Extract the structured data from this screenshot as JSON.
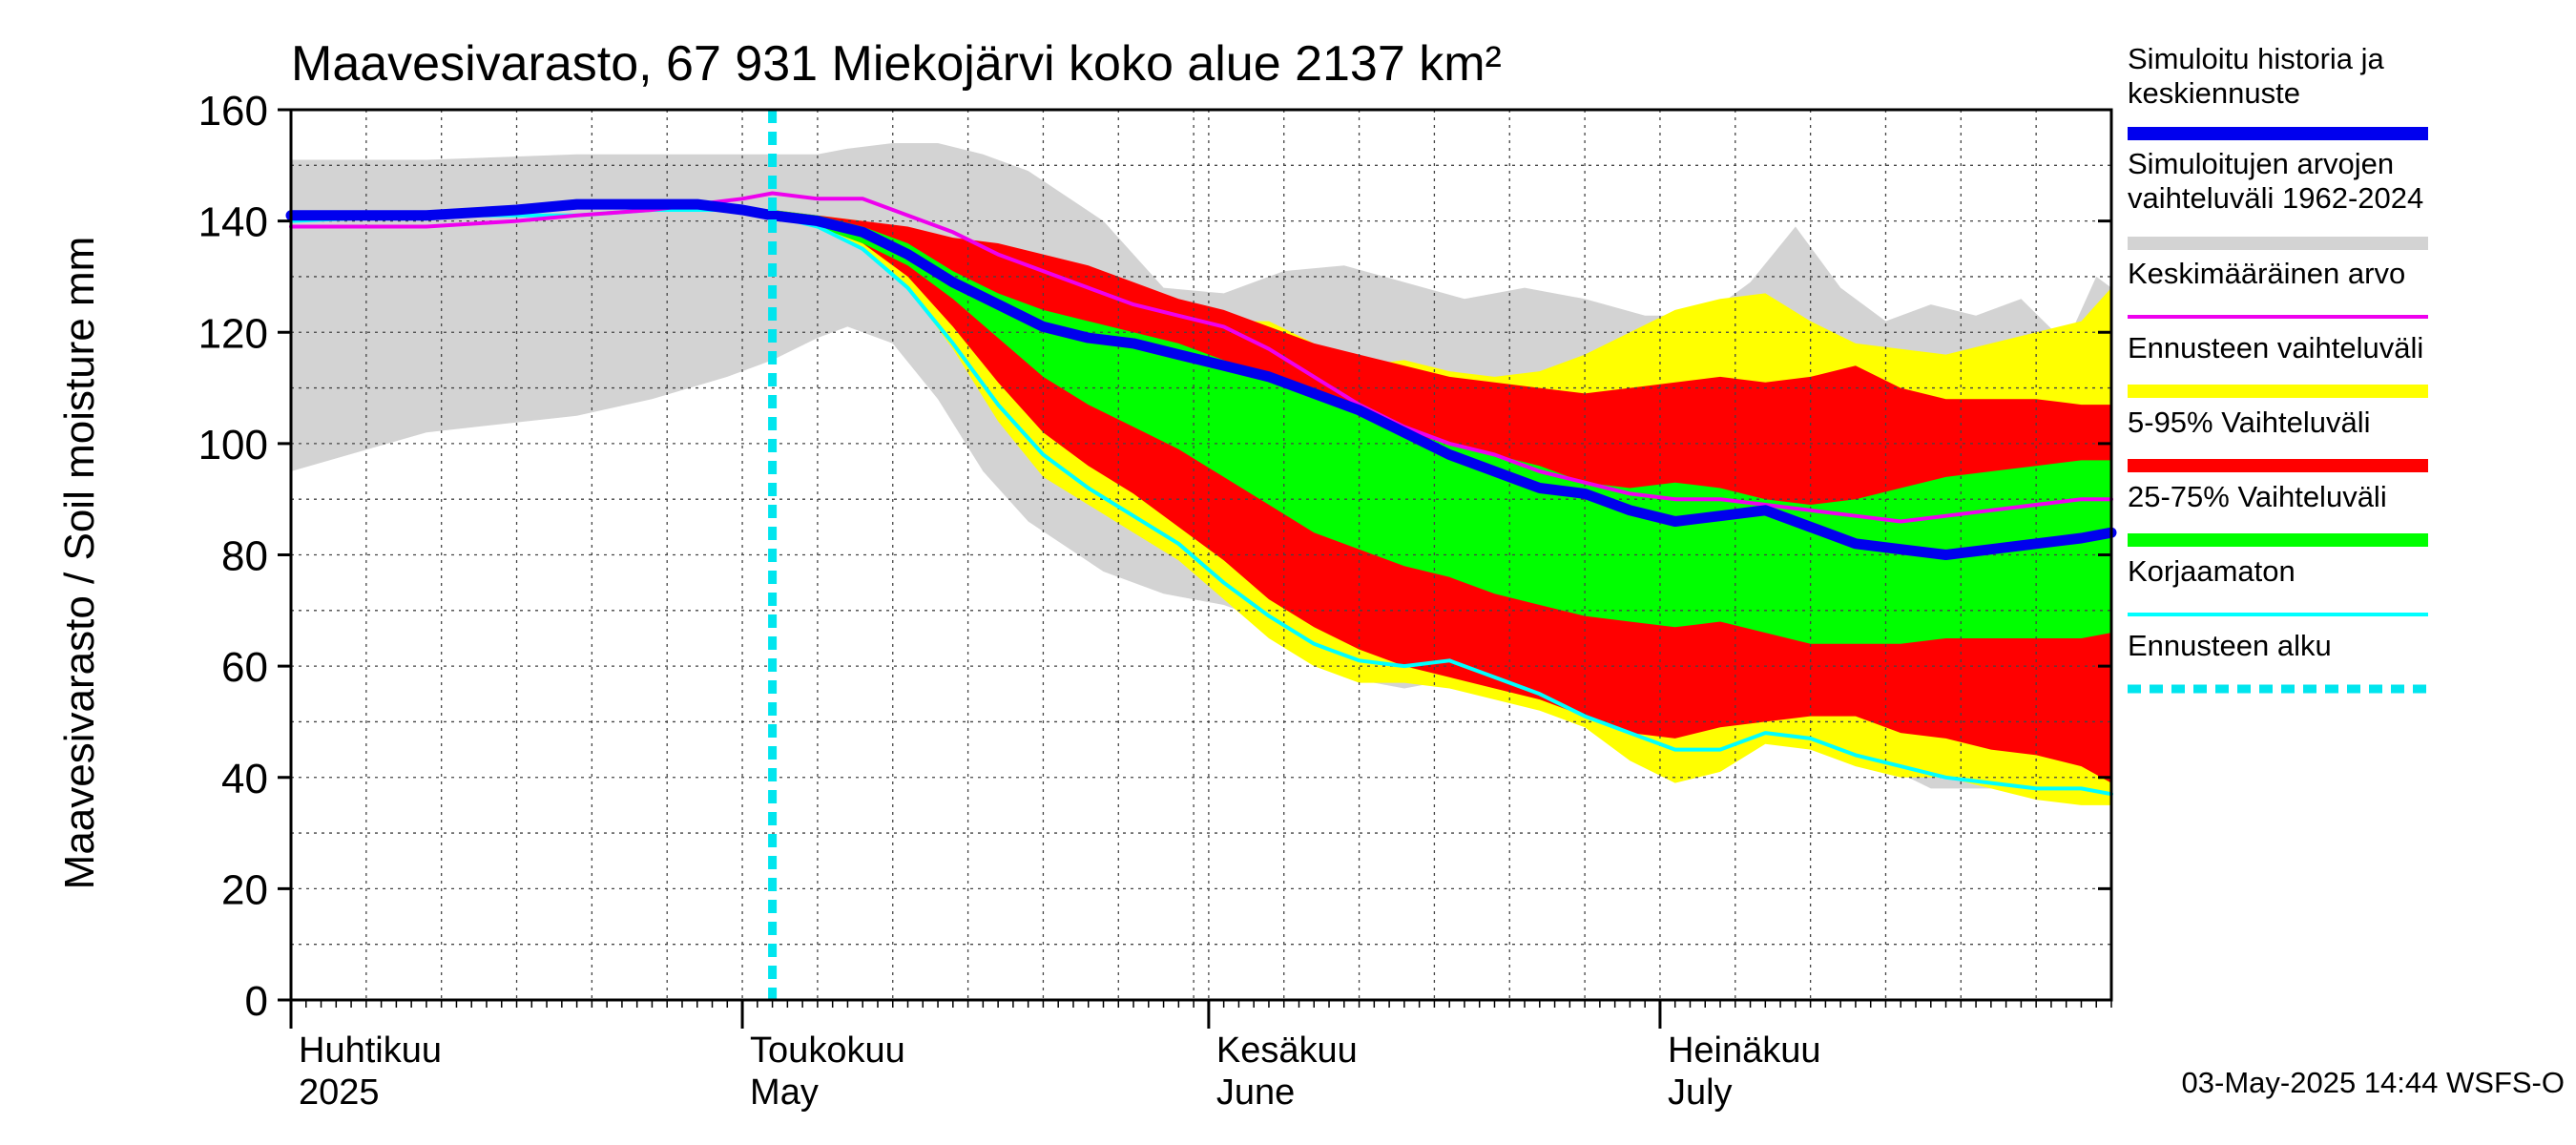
{
  "chart_data": {
    "type": "area",
    "title": "Maavesivarasto, 67 931 Miekojärvi koko alue 2137 km²",
    "ylabel": "Maavesivarasto / Soil moisture   mm",
    "ylim": [
      0,
      160
    ],
    "yticks": [
      "0",
      "20",
      "40",
      "60",
      "80",
      "100",
      "120",
      "140",
      "160"
    ],
    "grid": true,
    "x_range": [
      "2025-04-01",
      "2025-07-31"
    ],
    "months": [
      {
        "date": "2025-04-01",
        "line1": "Huhtikuu",
        "line2": "2025"
      },
      {
        "date": "2025-05-01",
        "line1": "Toukokuu",
        "line2": "May"
      },
      {
        "date": "2025-06-01",
        "line1": "Kesäkuu",
        "line2": "June"
      },
      {
        "date": "2025-07-01",
        "line1": "Heinäkuu",
        "line2": "July"
      }
    ],
    "forecast_start": "2025-05-03",
    "colors": {
      "history_range": "#d3d3d3",
      "forecast_range": "#ffff00",
      "p5_95": "#ff0000",
      "p25_75": "#00ff00",
      "median": "#0000ee",
      "mean": "#ee00ee",
      "uncorrected": "#00ffff",
      "forecast_start": "#00e5ee"
    },
    "series": {
      "history_range": {
        "x": [
          "2025-04-01",
          "2025-04-10",
          "2025-04-20",
          "2025-04-25",
          "2025-04-30",
          "2025-05-03",
          "2025-05-06",
          "2025-05-08",
          "2025-05-11",
          "2025-05-14",
          "2025-05-17",
          "2025-05-20",
          "2025-05-25",
          "2025-05-29",
          "2025-06-02",
          "2025-06-06",
          "2025-06-10",
          "2025-06-14",
          "2025-06-18",
          "2025-06-22",
          "2025-06-26",
          "2025-06-30",
          "2025-07-04",
          "2025-07-07",
          "2025-07-10",
          "2025-07-13",
          "2025-07-16",
          "2025-07-19",
          "2025-07-22",
          "2025-07-25",
          "2025-07-28",
          "2025-07-30",
          "2025-07-31"
        ],
        "upper": [
          151,
          151,
          152,
          152,
          152,
          152,
          152,
          153,
          154,
          154,
          152,
          149,
          140,
          128,
          127,
          131,
          132,
          129,
          126,
          128,
          126,
          123,
          123,
          129,
          139,
          128,
          122,
          125,
          123,
          126,
          118,
          130,
          128
        ],
        "lower": [
          95,
          102,
          105,
          108,
          112,
          115,
          119,
          121,
          118,
          108,
          95,
          86,
          77,
          73,
          71,
          67,
          58,
          56,
          58,
          56,
          51,
          44,
          44,
          50,
          46,
          46,
          42,
          38,
          38,
          38,
          36,
          36,
          37
        ]
      },
      "forecast_range": {
        "x": [
          "2025-05-03",
          "2025-05-06",
          "2025-05-09",
          "2025-05-12",
          "2025-05-15",
          "2025-05-18",
          "2025-05-21",
          "2025-05-24",
          "2025-05-27",
          "2025-05-30",
          "2025-06-02",
          "2025-06-05",
          "2025-06-08",
          "2025-06-11",
          "2025-06-14",
          "2025-06-17",
          "2025-06-20",
          "2025-06-23",
          "2025-06-26",
          "2025-06-29",
          "2025-07-02",
          "2025-07-05",
          "2025-07-08",
          "2025-07-11",
          "2025-07-14",
          "2025-07-17",
          "2025-07-20",
          "2025-07-23",
          "2025-07-26",
          "2025-07-29",
          "2025-07-31"
        ],
        "upper": [
          142,
          141,
          140,
          138,
          135,
          133,
          130,
          128,
          125,
          123,
          122,
          122,
          118,
          114,
          115,
          113,
          112,
          113,
          116,
          120,
          124,
          126,
          127,
          122,
          118,
          117,
          116,
          118,
          120,
          122,
          128
        ],
        "lower": [
          141,
          139,
          135,
          128,
          117,
          104,
          94,
          89,
          84,
          79,
          72,
          65,
          60,
          57,
          57,
          56,
          54,
          52,
          49,
          43,
          39,
          41,
          46,
          45,
          42,
          40,
          40,
          38,
          36,
          35,
          35
        ]
      },
      "p5_95": {
        "x": [
          "2025-05-03",
          "2025-05-06",
          "2025-05-09",
          "2025-05-12",
          "2025-05-15",
          "2025-05-18",
          "2025-05-21",
          "2025-05-24",
          "2025-05-27",
          "2025-05-30",
          "2025-06-02",
          "2025-06-05",
          "2025-06-08",
          "2025-06-11",
          "2025-06-14",
          "2025-06-17",
          "2025-06-20",
          "2025-06-23",
          "2025-06-26",
          "2025-06-29",
          "2025-07-02",
          "2025-07-05",
          "2025-07-08",
          "2025-07-11",
          "2025-07-14",
          "2025-07-17",
          "2025-07-20",
          "2025-07-23",
          "2025-07-26",
          "2025-07-29",
          "2025-07-31"
        ],
        "upper": [
          142,
          141,
          140,
          139,
          137,
          136,
          134,
          132,
          129,
          126,
          124,
          121,
          118,
          116,
          114,
          112,
          111,
          110,
          109,
          110,
          111,
          112,
          111,
          112,
          114,
          110,
          108,
          108,
          108,
          107,
          107
        ],
        "lower": [
          141,
          139,
          136,
          130,
          121,
          111,
          102,
          96,
          91,
          85,
          79,
          72,
          67,
          63,
          60,
          58,
          56,
          54,
          51,
          48,
          47,
          49,
          50,
          51,
          51,
          48,
          47,
          45,
          44,
          42,
          39
        ]
      },
      "p25_75": {
        "x": [
          "2025-05-03",
          "2025-05-06",
          "2025-05-09",
          "2025-05-12",
          "2025-05-15",
          "2025-05-18",
          "2025-05-21",
          "2025-05-24",
          "2025-05-27",
          "2025-05-30",
          "2025-06-02",
          "2025-06-05",
          "2025-06-08",
          "2025-06-11",
          "2025-06-14",
          "2025-06-17",
          "2025-06-20",
          "2025-06-23",
          "2025-06-26",
          "2025-06-29",
          "2025-07-02",
          "2025-07-05",
          "2025-07-08",
          "2025-07-11",
          "2025-07-14",
          "2025-07-17",
          "2025-07-20",
          "2025-07-23",
          "2025-07-26",
          "2025-07-29",
          "2025-07-31"
        ],
        "upper": [
          142,
          141,
          139,
          136,
          131,
          127,
          124,
          122,
          120,
          118,
          115,
          112,
          109,
          105,
          102,
          100,
          98,
          96,
          93,
          92,
          93,
          92,
          90,
          89,
          90,
          92,
          94,
          95,
          96,
          97,
          97
        ],
        "lower": [
          141,
          139,
          136,
          132,
          126,
          119,
          112,
          107,
          103,
          99,
          94,
          89,
          84,
          81,
          78,
          76,
          73,
          71,
          69,
          68,
          67,
          68,
          66,
          64,
          64,
          64,
          65,
          65,
          65,
          65,
          66
        ]
      },
      "median": {
        "x": [
          "2025-04-01",
          "2025-04-10",
          "2025-04-16",
          "2025-04-20",
          "2025-04-25",
          "2025-04-28",
          "2025-05-01",
          "2025-05-03",
          "2025-05-06",
          "2025-05-09",
          "2025-05-12",
          "2025-05-15",
          "2025-05-18",
          "2025-05-21",
          "2025-05-24",
          "2025-05-27",
          "2025-05-30",
          "2025-06-02",
          "2025-06-05",
          "2025-06-08",
          "2025-06-11",
          "2025-06-14",
          "2025-06-17",
          "2025-06-20",
          "2025-06-23",
          "2025-06-26",
          "2025-06-29",
          "2025-07-02",
          "2025-07-05",
          "2025-07-08",
          "2025-07-11",
          "2025-07-14",
          "2025-07-17",
          "2025-07-20",
          "2025-07-23",
          "2025-07-26",
          "2025-07-29",
          "2025-07-31"
        ],
        "y": [
          141,
          141,
          142,
          143,
          143,
          143,
          142,
          141,
          140,
          138,
          134,
          129,
          125,
          121,
          119,
          118,
          116,
          114,
          112,
          109,
          106,
          102,
          98,
          95,
          92,
          91,
          88,
          86,
          87,
          88,
          85,
          82,
          81,
          80,
          81,
          82,
          83,
          84
        ]
      },
      "mean": {
        "x": [
          "2025-04-01",
          "2025-04-10",
          "2025-04-16",
          "2025-04-20",
          "2025-04-25",
          "2025-04-28",
          "2025-05-01",
          "2025-05-03",
          "2025-05-06",
          "2025-05-09",
          "2025-05-12",
          "2025-05-15",
          "2025-05-18",
          "2025-05-21",
          "2025-05-24",
          "2025-05-27",
          "2025-05-30",
          "2025-06-02",
          "2025-06-05",
          "2025-06-08",
          "2025-06-11",
          "2025-06-14",
          "2025-06-17",
          "2025-06-20",
          "2025-06-23",
          "2025-06-26",
          "2025-06-29",
          "2025-07-02",
          "2025-07-05",
          "2025-07-08",
          "2025-07-11",
          "2025-07-14",
          "2025-07-17",
          "2025-07-20",
          "2025-07-23",
          "2025-07-26",
          "2025-07-29",
          "2025-07-31"
        ],
        "y": [
          139,
          139,
          140,
          141,
          142,
          143,
          144,
          145,
          144,
          144,
          141,
          138,
          134,
          131,
          128,
          125,
          123,
          121,
          117,
          112,
          107,
          103,
          100,
          98,
          95,
          93,
          91,
          90,
          90,
          89,
          88,
          87,
          86,
          87,
          88,
          89,
          90,
          90
        ]
      },
      "uncorrected": {
        "x": [
          "2025-04-01",
          "2025-04-10",
          "2025-04-20",
          "2025-04-25",
          "2025-04-30",
          "2025-05-03",
          "2025-05-06",
          "2025-05-09",
          "2025-05-12",
          "2025-05-15",
          "2025-05-18",
          "2025-05-21",
          "2025-05-24",
          "2025-05-27",
          "2025-05-30",
          "2025-06-02",
          "2025-06-05",
          "2025-06-08",
          "2025-06-11",
          "2025-06-14",
          "2025-06-17",
          "2025-06-20",
          "2025-06-23",
          "2025-06-26",
          "2025-06-29",
          "2025-07-02",
          "2025-07-05",
          "2025-07-08",
          "2025-07-11",
          "2025-07-14",
          "2025-07-17",
          "2025-07-20",
          "2025-07-23",
          "2025-07-26",
          "2025-07-29",
          "2025-07-31"
        ],
        "y": [
          140,
          141,
          141,
          142,
          142,
          141,
          139,
          135,
          128,
          118,
          107,
          98,
          92,
          87,
          82,
          75,
          69,
          64,
          61,
          60,
          61,
          58,
          55,
          51,
          48,
          45,
          45,
          48,
          47,
          44,
          42,
          40,
          39,
          38,
          38,
          37
        ]
      }
    },
    "legend": [
      {
        "label": "Simuloitu historia ja keskiennuste",
        "lines": [
          "Simuloitu historia ja",
          "keskiennuste"
        ],
        "color": "#0000ee",
        "style": "thick"
      },
      {
        "label": "Simuloitujen arvojen vaihteluväli 1962-2024",
        "lines": [
          "Simuloitujen arvojen",
          "vaihteluväli 1962-2024"
        ],
        "color": "#d3d3d3",
        "style": "thick"
      },
      {
        "label": "Keskimääräinen arvo",
        "lines": [
          "Keskimääräinen arvo"
        ],
        "color": "#ee00ee",
        "style": "thin"
      },
      {
        "label": "Ennusteen vaihteluväli",
        "lines": [
          "Ennusteen vaihteluväli"
        ],
        "color": "#ffff00",
        "style": "thick"
      },
      {
        "label": "5-95% Vaihteluväli",
        "lines": [
          "5-95% Vaihteluväli"
        ],
        "color": "#ff0000",
        "style": "thick"
      },
      {
        "label": "25-75% Vaihteluväli",
        "lines": [
          "25-75% Vaihteluväli"
        ],
        "color": "#00ff00",
        "style": "thick"
      },
      {
        "label": "Korjaamaton",
        "lines": [
          "Korjaamaton"
        ],
        "color": "#00ffff",
        "style": "thin"
      },
      {
        "label": "Ennusteen alku",
        "lines": [
          "Ennusteen alku"
        ],
        "color": "#00e5ee",
        "style": "dashed"
      }
    ],
    "footer": "03-May-2025 14:44 WSFS-O"
  }
}
